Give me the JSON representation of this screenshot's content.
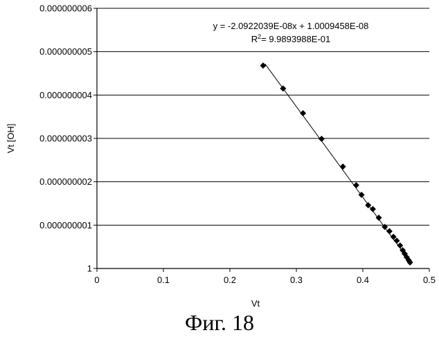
{
  "chart_data": {
    "type": "scatter",
    "xlabel": "Vt",
    "ylabel": "Vt [OH]",
    "xlim": [
      0,
      0.5
    ],
    "ylim": [
      0,
      6e-09
    ],
    "x_ticks": [
      "0",
      "0.1",
      "0.2",
      "0.3",
      "0.4",
      "0.5"
    ],
    "y_ticks": [
      "1",
      "0.000000001",
      "0.000000002",
      "0.000000003",
      "0.000000004",
      "0.000000005",
      "0.000000006"
    ],
    "grid": "horizontal",
    "points": [
      {
        "x": 0.25,
        "y": 4.68e-09
      },
      {
        "x": 0.28,
        "y": 4.15e-09
      },
      {
        "x": 0.31,
        "y": 3.58e-09
      },
      {
        "x": 0.338,
        "y": 2.99e-09
      },
      {
        "x": 0.37,
        "y": 2.35e-09
      },
      {
        "x": 0.39,
        "y": 1.92e-09
      },
      {
        "x": 0.398,
        "y": 1.7e-09
      },
      {
        "x": 0.408,
        "y": 1.46e-09
      },
      {
        "x": 0.415,
        "y": 1.37e-09
      },
      {
        "x": 0.424,
        "y": 1.17e-09
      },
      {
        "x": 0.433,
        "y": 9.6e-10
      },
      {
        "x": 0.44,
        "y": 8.6e-10
      },
      {
        "x": 0.446,
        "y": 7.3e-10
      },
      {
        "x": 0.451,
        "y": 6.4e-10
      },
      {
        "x": 0.456,
        "y": 5.3e-10
      },
      {
        "x": 0.46,
        "y": 4.2e-10
      },
      {
        "x": 0.463,
        "y": 3.4e-10
      },
      {
        "x": 0.466,
        "y": 2.6e-10
      },
      {
        "x": 0.469,
        "y": 1.9e-10
      },
      {
        "x": 0.471,
        "y": 1.4e-10
      }
    ],
    "trendline": {
      "slope": -2.0922039e-08,
      "intercept": 1.0009458e-08,
      "x_range": [
        0.253,
        0.471
      ],
      "equation": "y = -2.0922039E-08x + 1.0009458E-08",
      "r2_prefix": "R",
      "r2_sup": "2",
      "r2_value": "= 9.9893988E-01"
    },
    "marker": "diamond"
  },
  "caption": "Фиг. 18"
}
